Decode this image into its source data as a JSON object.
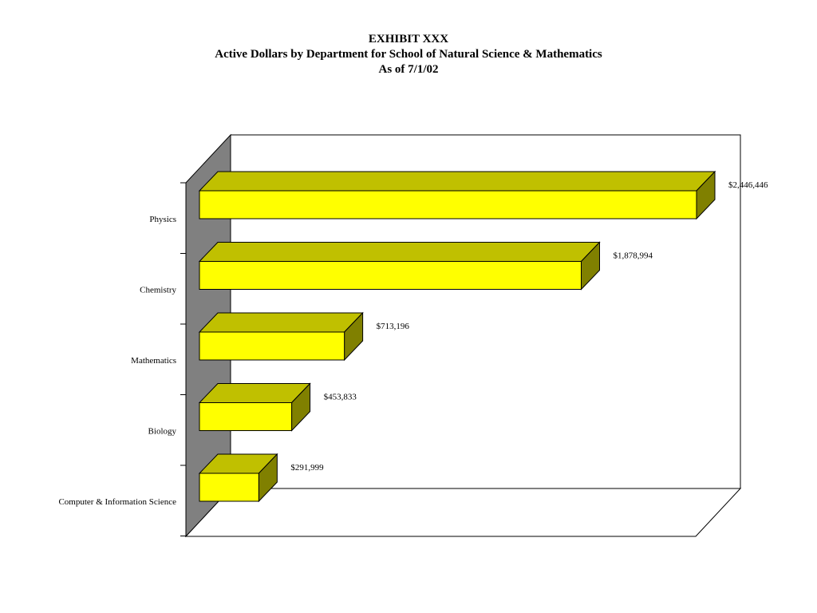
{
  "chart_data": {
    "type": "bar",
    "orientation": "horizontal",
    "three_d": true,
    "title": "EXHIBIT XXX",
    "subtitle": "Active Dollars by Department for School of Natural Science & Mathematics",
    "subtitle2": "As of 7/1/02",
    "categories": [
      "Physics",
      "Chemistry",
      "Mathematics",
      "Biology",
      "Computer & Information Science"
    ],
    "values": [
      2446446,
      1878994,
      713196,
      453833,
      291999
    ],
    "data_labels": [
      "$2,446,446",
      "$1,878,994",
      "$713,196",
      "$453,833",
      "$291,999"
    ],
    "xlim": [
      0,
      2446446
    ],
    "grid": false,
    "legend": "none"
  },
  "colors": {
    "bar_front": "#ffff00",
    "bar_top": "#c0c000",
    "bar_side": "#808000",
    "wall": "#808080"
  }
}
